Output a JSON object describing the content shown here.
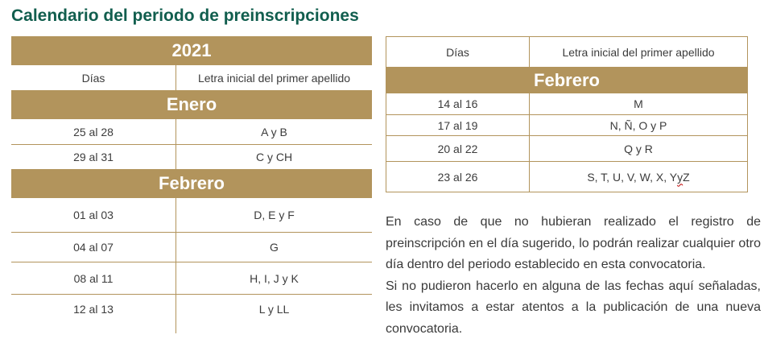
{
  "title": "Calendario del periodo de preinscripciones",
  "colors": {
    "accent": "#B2945C",
    "title": "#115E4E",
    "text": "#3C3C3C",
    "banner_text": "#FFFFFF",
    "squiggle": "#C00000"
  },
  "left_table": {
    "year_header": "2021",
    "columns": {
      "days": "Días",
      "letters": "Letra inicial del primer apellido"
    },
    "sections": [
      {
        "month": "Enero",
        "rows": [
          {
            "days": "25 al 28",
            "letters": "A y B"
          },
          {
            "days": "29 al 31",
            "letters": "C y CH"
          }
        ]
      },
      {
        "month": "Febrero",
        "rows": [
          {
            "days": "01 al 03",
            "letters": "D, E y F"
          },
          {
            "days": "04 al 07",
            "letters": "G"
          },
          {
            "days": "08 al 11",
            "letters": "H, I, J y K"
          },
          {
            "days": "12 al 13",
            "letters": "L y LL"
          }
        ]
      }
    ]
  },
  "right_table": {
    "columns": {
      "days": "Días",
      "letters": "Letra inicial del primer apellido"
    },
    "month": "Febrero",
    "rows": [
      {
        "days": "14 al 16",
        "letters": "M"
      },
      {
        "days": "17 al 19",
        "letters": "N, Ñ, O y P"
      },
      {
        "days": "20 al 22",
        "letters": "Q y R"
      },
      {
        "days": "23 al 26",
        "letters": "S, T, U, V, W, X, Y y Z",
        "letters_parts": {
          "before": "S, T, U, V, W, X, Y ",
          "misspelled": "y",
          "after": " Z"
        }
      }
    ]
  },
  "note": {
    "paragraph1": "En caso de que no hubieran realizado el registro de preinscripción en el día sugerido, lo podrán realizar cualquier otro día dentro del periodo establecido en esta convocatoria.",
    "paragraph2": "Si no pudieron hacerlo en alguna de las fechas aquí señaladas, les invitamos a estar atentos a la publicación de una nueva convocatoria."
  }
}
